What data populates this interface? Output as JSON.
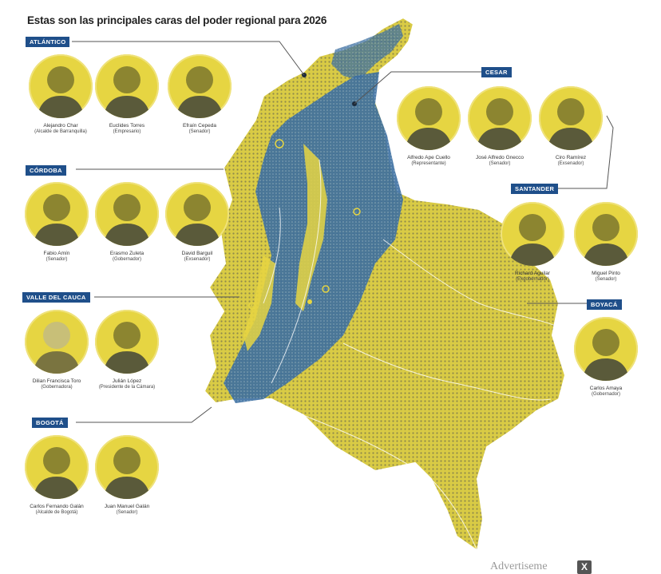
{
  "title": "Estas son las principales caras del poder regional para 2026",
  "colors": {
    "map_yellow": "#e6d542",
    "map_blue": "#3b6ea0",
    "label_bg": "#1f4f8a",
    "connector": "#555555"
  },
  "regions": {
    "atlantico": "ATLÁNTICO",
    "cesar": "CESAR",
    "cordoba": "CÓRDOBA",
    "santander": "SANTANDER",
    "valle": "VALLE DEL CAUCA",
    "boyaca": "BOYACÁ",
    "bogota": "BOGOTÁ"
  },
  "people": [
    {
      "name": "Alejandro Char",
      "role": "(Alcalde de Barranquilla)"
    },
    {
      "name": "Euclides Torres",
      "role": "(Empresario)"
    },
    {
      "name": "Efraín Cepeda",
      "role": "(Senador)"
    },
    {
      "name": "Alfredo Ape Cuello",
      "role": "(Representante)"
    },
    {
      "name": "José Alfredo Gnecco",
      "role": "(Senador)"
    },
    {
      "name": "Ciro Ramírez",
      "role": "(Exsenador)"
    },
    {
      "name": "Fabio Amín",
      "role": "(Senador)"
    },
    {
      "name": "Erasmo Zuleta",
      "role": "(Gobernador)"
    },
    {
      "name": "David Barguil",
      "role": "(Exsenador)"
    },
    {
      "name": "Richard Aguilar",
      "role": "(Exgobernador)"
    },
    {
      "name": "Miguel Pinto",
      "role": "(Senador)"
    },
    {
      "name": "Dilian Francisca Toro",
      "role": "(Gobernadora)"
    },
    {
      "name": "Julián López",
      "role": "(Presidente de la Cámara)"
    },
    {
      "name": "Carlos Amaya",
      "role": "(Gobernador)"
    },
    {
      "name": "Carlos Fernando Galán",
      "role": "(Alcalde de Bogotá)"
    },
    {
      "name": "Juan Manuel Galán",
      "role": "(Senador)"
    }
  ],
  "ad": {
    "label": "Advertiseme",
    "close": "X"
  }
}
